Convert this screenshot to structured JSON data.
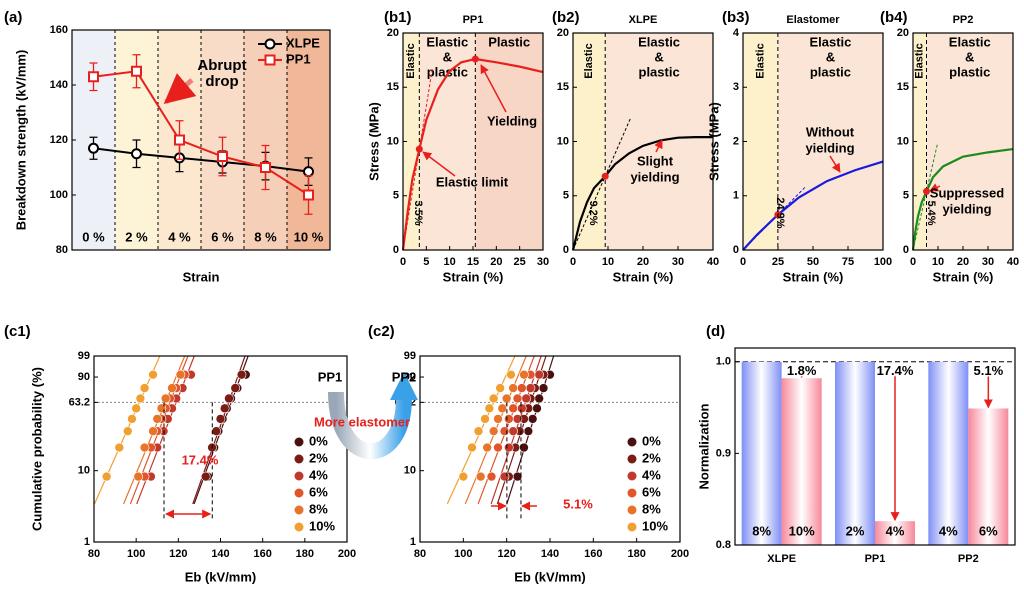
{
  "chart_data": [
    {
      "type": "line",
      "panel": "(a)",
      "ylabel": "Breakdown strength (kV/mm)",
      "xlabel": "Strain",
      "categories": [
        "0 %",
        "2 %",
        "4 %",
        "6 %",
        "8 %",
        "10 %"
      ],
      "ylim": [
        80,
        160
      ],
      "yticks": [
        80,
        100,
        120,
        140,
        160
      ],
      "legend": "upper right",
      "series": [
        {
          "name": "XLPE",
          "color": "#000000",
          "marker": "circle",
          "values": [
            117,
            115,
            113.5,
            112,
            110.5,
            108.5
          ],
          "errors": [
            4,
            5,
            5,
            4,
            5,
            5
          ]
        },
        {
          "name": "PP1",
          "color": "#e8201c",
          "marker": "square",
          "values": [
            143,
            145,
            120,
            114,
            110,
            100
          ],
          "errors": [
            5,
            6,
            7,
            7,
            8,
            7
          ]
        }
      ],
      "annotations": [
        [
          "Abrupt",
          "drop"
        ]
      ]
    },
    {
      "type": "line",
      "panel": "(b1)",
      "title": "PP1",
      "ylabel": "Stress (MPa)",
      "xlabel": "Strain (%)",
      "x": [
        0,
        1,
        2,
        3.5,
        5,
        7.5,
        10,
        12.5,
        15.5,
        20,
        25,
        30
      ],
      "series": [
        {
          "color": "#e8201c",
          "values": [
            0,
            3.5,
            6.5,
            9.3,
            12,
            14.8,
            16.5,
            17.3,
            17.6,
            17.3,
            16.9,
            16.4
          ]
        }
      ],
      "xlim": [
        0,
        30
      ],
      "xticks": [
        0,
        5,
        10,
        15,
        20,
        25,
        30
      ],
      "ylim": [
        0,
        20
      ],
      "yticks": [
        0,
        5,
        10,
        15,
        20
      ],
      "boundaries": [
        3.5,
        15.5
      ],
      "regions": [
        [
          "Elastic"
        ],
        [
          "Elastic",
          "&",
          "plastic"
        ],
        [
          "Plastic"
        ]
      ],
      "annotations": [
        [
          "Elastic limit"
        ],
        [
          "Yielding"
        ],
        [
          "3.5%"
        ]
      ]
    },
    {
      "type": "line",
      "panel": "(b2)",
      "title": "XLPE",
      "xlabel": "Strain (%)",
      "x": [
        0,
        2,
        4,
        6,
        9.2,
        12,
        16,
        20,
        25,
        30,
        35,
        40
      ],
      "series": [
        {
          "color": "#000000",
          "values": [
            0,
            2.6,
            4.4,
            5.7,
            6.8,
            7.9,
            8.9,
            9.6,
            10.1,
            10.35,
            10.4,
            10.4
          ]
        }
      ],
      "xlim": [
        0,
        40
      ],
      "xticks": [
        0,
        10,
        20,
        30,
        40
      ],
      "ylim": [
        0,
        20
      ],
      "yticks": [
        0,
        5,
        10,
        15,
        20
      ],
      "boundaries": [
        9.2
      ],
      "regions": [
        [
          "Elastic"
        ],
        [
          "Elastic",
          "&",
          "plastic"
        ]
      ],
      "annotations": [
        [
          "Slight",
          "yielding"
        ],
        [
          "9.2%"
        ]
      ]
    },
    {
      "type": "line",
      "panel": "(b3)",
      "title": "Elastomer",
      "ylabel": "Stress (MPa)",
      "xlabel": "Strain (%)",
      "x": [
        0,
        10,
        24.9,
        40,
        60,
        80,
        100
      ],
      "series": [
        {
          "color": "#1a1adf",
          "values": [
            0,
            0.28,
            0.65,
            0.97,
            1.27,
            1.47,
            1.63
          ]
        }
      ],
      "xlim": [
        0,
        100
      ],
      "xticks": [
        0,
        25,
        50,
        75,
        100
      ],
      "ylim": [
        0,
        4
      ],
      "yticks": [
        0,
        1,
        2,
        3,
        4
      ],
      "boundaries": [
        24.9
      ],
      "regions": [
        [
          "Elastic"
        ],
        [
          "Elastic",
          "&",
          "plastic"
        ]
      ],
      "annotations": [
        [
          "Without",
          "yielding"
        ],
        [
          "24.9%"
        ]
      ]
    },
    {
      "type": "line",
      "panel": "(b4)",
      "title": "PP2",
      "xlabel": "Strain (%)",
      "x": [
        0,
        1,
        2,
        3.5,
        5.4,
        8,
        12,
        20,
        30,
        40
      ],
      "series": [
        {
          "color": "#1e8a1e",
          "values": [
            0,
            1.8,
            3.1,
            4.4,
            5.4,
            6.7,
            7.7,
            8.6,
            9.0,
            9.3
          ]
        }
      ],
      "xlim": [
        0,
        40
      ],
      "xticks": [
        0,
        10,
        20,
        30,
        40
      ],
      "ylim": [
        0,
        20
      ],
      "yticks": [
        0,
        5,
        10,
        15,
        20
      ],
      "boundaries": [
        5.4
      ],
      "regions": [
        [
          "Elastic"
        ],
        [
          "Elastic",
          "&",
          "plastic"
        ]
      ],
      "annotations": [
        [
          "Suppressed",
          "yielding"
        ],
        [
          "5.4%"
        ]
      ]
    },
    {
      "type": "scatter",
      "panel": "(c1)",
      "ylabel": "Cumulative probability (%)",
      "xlabel": "Eb (kV/mm)",
      "xlim": [
        80,
        200
      ],
      "xticks": [
        80,
        100,
        120,
        140,
        160,
        180,
        200
      ],
      "ylim": [
        1,
        99
      ],
      "yticks": [
        1,
        10,
        63.2,
        90,
        99
      ],
      "yscale": "weibull",
      "hline": 63.2,
      "y": [
        8.3,
        20.2,
        32.1,
        44.0,
        56.0,
        67.9,
        79.8,
        91.7
      ],
      "series": [
        {
          "name": "0%",
          "color": "#4a1010",
          "x": [
            134,
            137,
            139,
            141,
            143,
            145,
            148,
            152
          ]
        },
        {
          "name": "2%",
          "color": "#7a1c14",
          "x": [
            133,
            136,
            138,
            140,
            142,
            144,
            147,
            150
          ]
        },
        {
          "name": "4%",
          "color": "#c0392b",
          "x": [
            107,
            110,
            113,
            115,
            117,
            119,
            122,
            126
          ]
        },
        {
          "name": "6%",
          "color": "#e0552a",
          "x": [
            104,
            107,
            110,
            112,
            114,
            116,
            119,
            123
          ]
        },
        {
          "name": "8%",
          "color": "#e8742a",
          "x": [
            101,
            104,
            108,
            110,
            112,
            114,
            117,
            121
          ]
        },
        {
          "name": "10%",
          "color": "#f0a030",
          "x": [
            86,
            92,
            96,
            98,
            100,
            102,
            104,
            108
          ]
        }
      ],
      "ref_x": [
        113.2,
        136.1
      ],
      "annotations": [
        [
          "17.4%"
        ]
      ]
    },
    {
      "type": "scatter",
      "panel": "(c2)",
      "xlabel": "Eb (kV/mm)",
      "xlim": [
        80,
        200
      ],
      "xticks": [
        80,
        100,
        120,
        140,
        160,
        180,
        200
      ],
      "ylim": [
        1,
        99
      ],
      "yticks": [
        1,
        10,
        63.2,
        90,
        99
      ],
      "yscale": "weibull",
      "hline": 63.2,
      "y": [
        8.3,
        20.2,
        32.1,
        44.0,
        56.0,
        67.9,
        79.8,
        91.7
      ],
      "series": [
        {
          "name": "0%",
          "color": "#4a1010",
          "x": [
            125,
            128,
            130,
            132,
            134,
            135,
            137,
            140
          ]
        },
        {
          "name": "2%",
          "color": "#7a1c14",
          "x": [
            121,
            124,
            126,
            128,
            130,
            131,
            133,
            137
          ]
        },
        {
          "name": "4%",
          "color": "#c0392b",
          "x": [
            119,
            121,
            123,
            125,
            127,
            129,
            131,
            135
          ]
        },
        {
          "name": "6%",
          "color": "#e0552a",
          "x": [
            113,
            116,
            119,
            121,
            123,
            125,
            127,
            131
          ]
        },
        {
          "name": "8%",
          "color": "#e8742a",
          "x": [
            108,
            111,
            114,
            116,
            118,
            120,
            123,
            128
          ]
        },
        {
          "name": "10%",
          "color": "#f0a030",
          "x": [
            100,
            104,
            107,
            110,
            112,
            114,
            117,
            122
          ]
        }
      ],
      "ref_x": [
        120.1,
        126.6
      ],
      "annotations": [
        [
          "5.1%"
        ]
      ]
    },
    {
      "type": "bar",
      "panel": "(d)",
      "ylabel": "Normalization",
      "categories": [
        "XLPE",
        "PP1",
        "PP2"
      ],
      "ylim": [
        0.8,
        1.015
      ],
      "yticks": [
        0.8,
        0.9,
        {
          "value": 1,
          "label": "1.0"
        }
      ],
      "hline": 1,
      "series": [
        {
          "color": "#7f8ff5",
          "values": [
            1,
            1,
            1
          ],
          "strain_labels": [
            "8%",
            "2%",
            "4%"
          ]
        },
        {
          "color": "#f7889a",
          "values": [
            0.982,
            0.826,
            0.949
          ],
          "strain_labels": [
            "10%",
            "4%",
            "6%"
          ]
        }
      ],
      "drop_labels": [
        "1.8%",
        "17.4%",
        "5.1%"
      ]
    }
  ],
  "transition": {
    "from": "PP1",
    "to": "PP2",
    "label": "More elastomer"
  }
}
